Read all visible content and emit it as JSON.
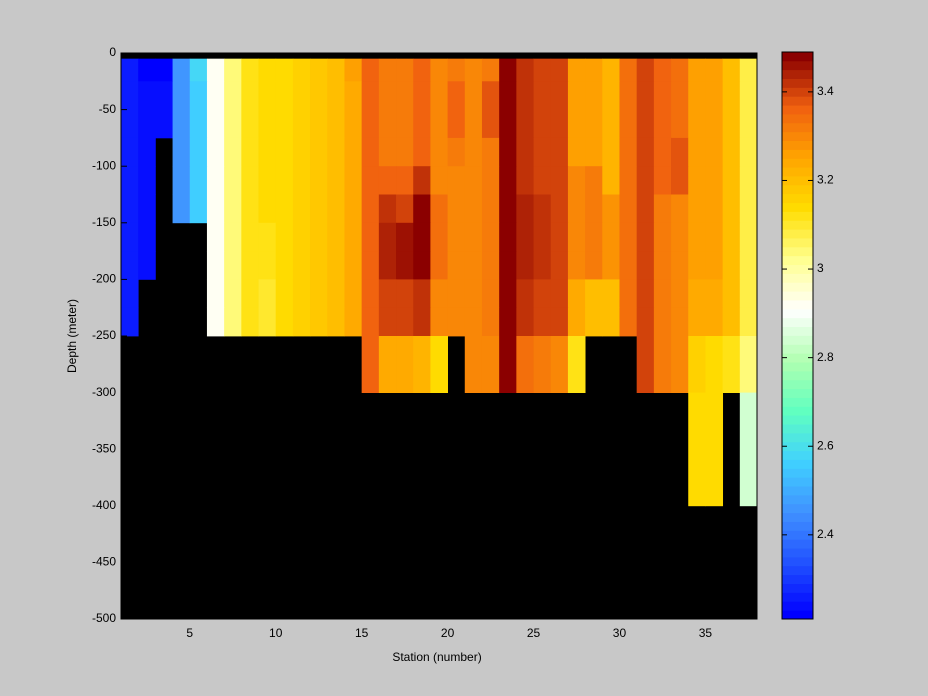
{
  "chart_data": {
    "type": "heatmap",
    "x_label": "Station (number)",
    "y_label": "Depth (meter)",
    "xlim": [
      1,
      38
    ],
    "ylim": [
      -500,
      0
    ],
    "xticks": [
      5,
      10,
      15,
      20,
      25,
      30,
      35
    ],
    "yticks": [
      0,
      -50,
      -100,
      -150,
      -200,
      -250,
      -300,
      -350,
      -400,
      -450,
      -500
    ],
    "x": [
      1,
      2,
      3,
      4,
      5,
      6,
      7,
      8,
      9,
      10,
      11,
      12,
      13,
      14,
      15,
      16,
      17,
      18,
      19,
      20,
      21,
      22,
      23,
      24,
      25,
      26,
      27,
      28,
      29,
      30,
      31,
      32,
      33,
      34,
      35,
      36,
      37,
      38
    ],
    "y": [
      -5,
      -25,
      -75,
      -100,
      -125,
      -150,
      -175,
      -200,
      -225,
      -250,
      -300,
      -400
    ],
    "z": [
      [
        2.25,
        2.22,
        2.22,
        2.45,
        2.58,
        2.92,
        3.04,
        3.12,
        3.14,
        3.15,
        3.17,
        3.18,
        3.2,
        3.27,
        3.37,
        3.32,
        3.32,
        3.37,
        3.3,
        3.33,
        3.3,
        3.33,
        3.48,
        3.42,
        3.4,
        3.4,
        3.27,
        3.27,
        3.22,
        3.35,
        3.4,
        3.36,
        3.35,
        3.27,
        3.27,
        3.2,
        3.08
      ],
      [
        2.25,
        2.23,
        2.23,
        2.45,
        2.57,
        2.92,
        3.04,
        3.12,
        3.14,
        3.15,
        3.17,
        3.18,
        3.2,
        3.25,
        3.37,
        3.32,
        3.32,
        3.37,
        3.3,
        3.36,
        3.3,
        3.38,
        3.48,
        3.42,
        3.4,
        3.4,
        3.27,
        3.27,
        3.22,
        3.35,
        3.4,
        3.36,
        3.35,
        3.27,
        3.27,
        3.2,
        3.08
      ],
      [
        2.25,
        2.23,
        null,
        2.45,
        2.57,
        2.92,
        3.04,
        3.12,
        3.14,
        3.15,
        3.17,
        3.18,
        3.2,
        3.25,
        3.37,
        3.32,
        3.32,
        3.37,
        3.3,
        3.33,
        3.3,
        3.33,
        3.48,
        3.42,
        3.4,
        3.4,
        3.27,
        3.27,
        3.22,
        3.35,
        3.4,
        3.36,
        3.38,
        3.27,
        3.27,
        3.2,
        3.08
      ],
      [
        2.25,
        2.23,
        null,
        2.45,
        2.57,
        2.92,
        3.04,
        3.12,
        3.14,
        3.15,
        3.17,
        3.18,
        3.2,
        3.25,
        3.37,
        3.36,
        3.36,
        3.42,
        3.3,
        3.3,
        3.3,
        3.33,
        3.48,
        3.42,
        3.4,
        3.4,
        3.3,
        3.32,
        3.22,
        3.35,
        3.4,
        3.36,
        3.38,
        3.27,
        3.27,
        3.2,
        3.08
      ],
      [
        2.25,
        2.23,
        null,
        2.45,
        2.57,
        2.92,
        3.04,
        3.12,
        3.14,
        3.15,
        3.17,
        3.18,
        3.2,
        3.25,
        3.37,
        3.42,
        3.4,
        3.48,
        3.35,
        3.3,
        3.3,
        3.33,
        3.48,
        3.44,
        3.42,
        3.4,
        3.3,
        3.32,
        3.28,
        3.35,
        3.4,
        3.32,
        3.3,
        3.27,
        3.27,
        3.2,
        3.08
      ],
      [
        2.25,
        2.23,
        null,
        null,
        null,
        2.92,
        3.04,
        3.12,
        3.13,
        3.15,
        3.17,
        3.18,
        3.2,
        3.25,
        3.37,
        3.44,
        3.45,
        3.49,
        3.35,
        3.3,
        3.3,
        3.33,
        3.48,
        3.44,
        3.42,
        3.4,
        3.3,
        3.32,
        3.28,
        3.35,
        3.4,
        3.32,
        3.3,
        3.27,
        3.27,
        3.2,
        3.08
      ],
      [
        2.25,
        2.23,
        null,
        null,
        null,
        2.92,
        3.04,
        3.12,
        3.13,
        3.15,
        3.17,
        3.18,
        3.2,
        3.25,
        3.37,
        3.44,
        3.45,
        3.49,
        3.35,
        3.3,
        3.3,
        3.33,
        3.48,
        3.44,
        3.42,
        3.4,
        3.3,
        3.32,
        3.28,
        3.35,
        3.4,
        3.32,
        3.3,
        3.27,
        3.27,
        3.2,
        3.08
      ],
      [
        2.25,
        null,
        null,
        null,
        null,
        2.91,
        3.04,
        3.12,
        3.1,
        3.15,
        3.17,
        3.18,
        3.2,
        3.25,
        3.37,
        3.4,
        3.4,
        3.42,
        3.3,
        3.3,
        3.3,
        3.33,
        3.48,
        3.42,
        3.4,
        3.4,
        3.25,
        3.2,
        3.2,
        3.35,
        3.4,
        3.32,
        3.3,
        3.25,
        3.25,
        3.2,
        3.08
      ],
      [
        2.25,
        null,
        null,
        null,
        null,
        2.91,
        3.04,
        3.12,
        3.1,
        3.15,
        3.17,
        3.18,
        3.2,
        3.25,
        3.37,
        3.4,
        3.4,
        3.42,
        3.3,
        3.3,
        3.3,
        3.33,
        3.48,
        3.42,
        3.4,
        3.4,
        3.25,
        3.2,
        3.2,
        3.35,
        3.4,
        3.32,
        3.3,
        3.25,
        3.25,
        3.2,
        3.08
      ],
      [
        null,
        null,
        null,
        null,
        null,
        null,
        null,
        null,
        null,
        null,
        null,
        null,
        null,
        null,
        3.36,
        3.25,
        3.24,
        3.22,
        3.15,
        null,
        3.3,
        3.3,
        3.48,
        3.35,
        3.32,
        3.3,
        3.12,
        null,
        null,
        null,
        3.4,
        3.32,
        3.3,
        3.17,
        3.15,
        3.12,
        3.05
      ],
      [
        null,
        null,
        null,
        null,
        null,
        null,
        null,
        null,
        null,
        null,
        null,
        null,
        null,
        null,
        null,
        null,
        null,
        null,
        null,
        null,
        null,
        null,
        null,
        null,
        null,
        null,
        null,
        null,
        null,
        null,
        null,
        null,
        null,
        3.15,
        3.15,
        null,
        2.83
      ]
    ],
    "clim": [
      2.21,
      3.49
    ],
    "cticks": [
      2.4,
      2.6,
      2.8,
      3,
      3.2,
      3.4
    ],
    "colormap": [
      "#0000ff",
      "#2050ff",
      "#4090ff",
      "#40d0ff",
      "#60ffc0",
      "#b0ffb0",
      "#ffffff",
      "#ffff90",
      "#ffdd00",
      "#ffa500",
      "#f06010",
      "#8b0000"
    ],
    "background": "#000000"
  }
}
